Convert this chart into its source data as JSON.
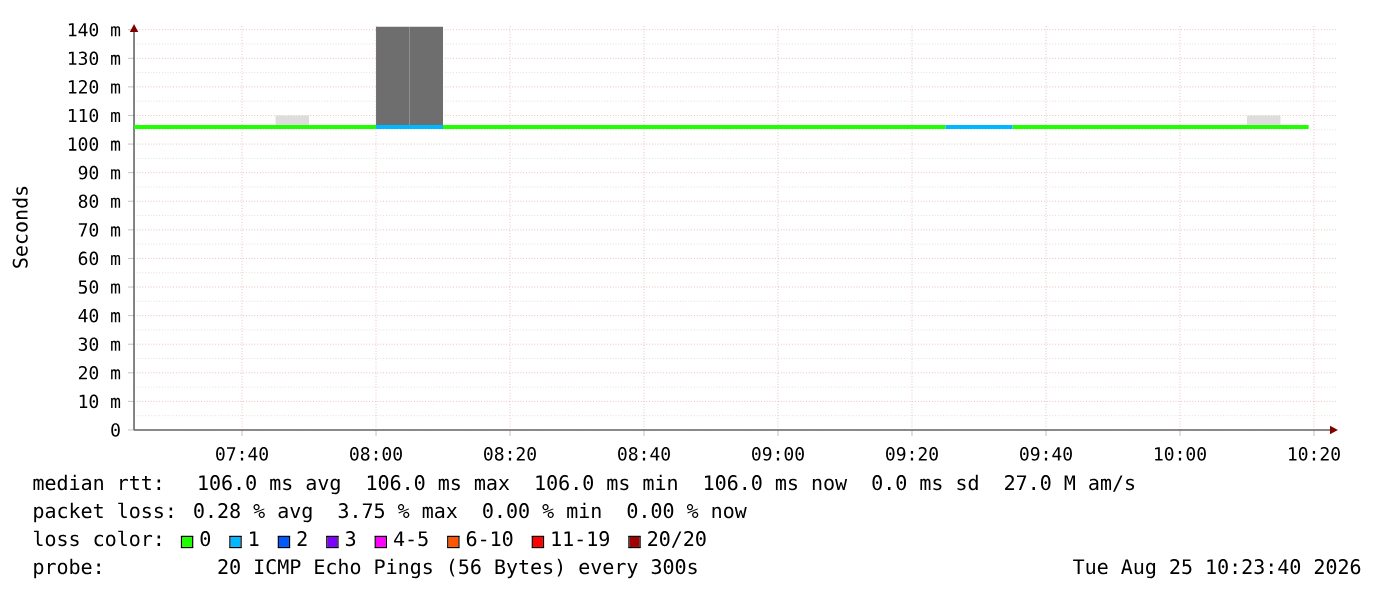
{
  "chart_data": {
    "type": "line",
    "ylabel": "Seconds",
    "legend_title": "loss color:",
    "legend": "bottom",
    "grid": true,
    "marker": "none",
    "line_style": "solid",
    "xlim": [
      7.398,
      10.393
    ],
    "ylim": [
      0,
      142
    ],
    "xticks": [
      {
        "value": 7.6667,
        "label": "07:40"
      },
      {
        "value": 8.0,
        "label": "08:00"
      },
      {
        "value": 8.3333,
        "label": "08:20"
      },
      {
        "value": 8.6667,
        "label": "08:40"
      },
      {
        "value": 9.0,
        "label": "09:00"
      },
      {
        "value": 9.3333,
        "label": "09:20"
      },
      {
        "value": 9.6667,
        "label": "09:40"
      },
      {
        "value": 10.0,
        "label": "10:00"
      },
      {
        "value": 10.3333,
        "label": "10:20"
      }
    ],
    "yticks": [
      0,
      {
        "value": 10,
        "label": "10 m"
      },
      {
        "value": 20,
        "label": "20 m"
      },
      {
        "value": 30,
        "label": "30 m"
      },
      {
        "value": 40,
        "label": "40 m"
      },
      {
        "value": 50,
        "label": "50 m"
      },
      {
        "value": 60,
        "label": "60 m"
      },
      {
        "value": 70,
        "label": "70 m"
      },
      {
        "value": 80,
        "label": "80 m"
      },
      {
        "value": 90,
        "label": "90 m"
      },
      {
        "value": 100,
        "label": "100 m"
      },
      {
        "value": 110,
        "label": "110 m"
      },
      {
        "value": 120,
        "label": "120 m"
      },
      {
        "value": 130,
        "label": "130 m"
      },
      {
        "value": 140,
        "label": "140 m"
      }
    ],
    "series": [
      {
        "type": "bar",
        "x": [
          7.7917,
          8.0417,
          8.125,
          10.2083
        ],
        "base": [
          106,
          106,
          106,
          106
        ],
        "values": [
          4,
          35,
          35,
          4
        ],
        "colors": [
          "#dddddd",
          "#6e6e6e",
          "#6e6e6e",
          "#dddddd"
        ]
      },
      {
        "name": "0",
        "color": "#20ff00",
        "x": [
          7.398,
          8.0,
          8.0833,
          8.1667,
          9.4167,
          9.5,
          9.5833,
          10.32
        ],
        "values": [
          106,
          106,
          null,
          106,
          106,
          null,
          106,
          106
        ]
      },
      {
        "name": "1",
        "color": "#00b8ff",
        "x": [
          8.0,
          8.1667,
          9.0,
          9.4167,
          9.5833
        ],
        "values": [
          106,
          106,
          null,
          106,
          106
        ]
      },
      {
        "name": "2",
        "color": "#0059ff"
      },
      {
        "name": "3",
        "color": "#7e00ff"
      },
      {
        "name": "4-5",
        "color": "#ff00ff"
      },
      {
        "name": "6-10",
        "color": "#ff5500"
      },
      {
        "name": "11-19",
        "color": "#ff0000"
      },
      {
        "name": "20/20",
        "color": "#a10000"
      }
    ],
    "annotations": [
      "median rtt:  106.0 ms avg  106.0 ms max  106.0 ms min  106.0 ms now  0.0 ms sd  27.0 M am/s",
      "packet loss: 0.28 % avg  3.75 % max  0.00 % min  0.00 % now",
      "probe:       20 ICMP Echo Pings (56 Bytes) every 300s",
      "Tue Aug 25 10:23:40 2026"
    ]
  }
}
